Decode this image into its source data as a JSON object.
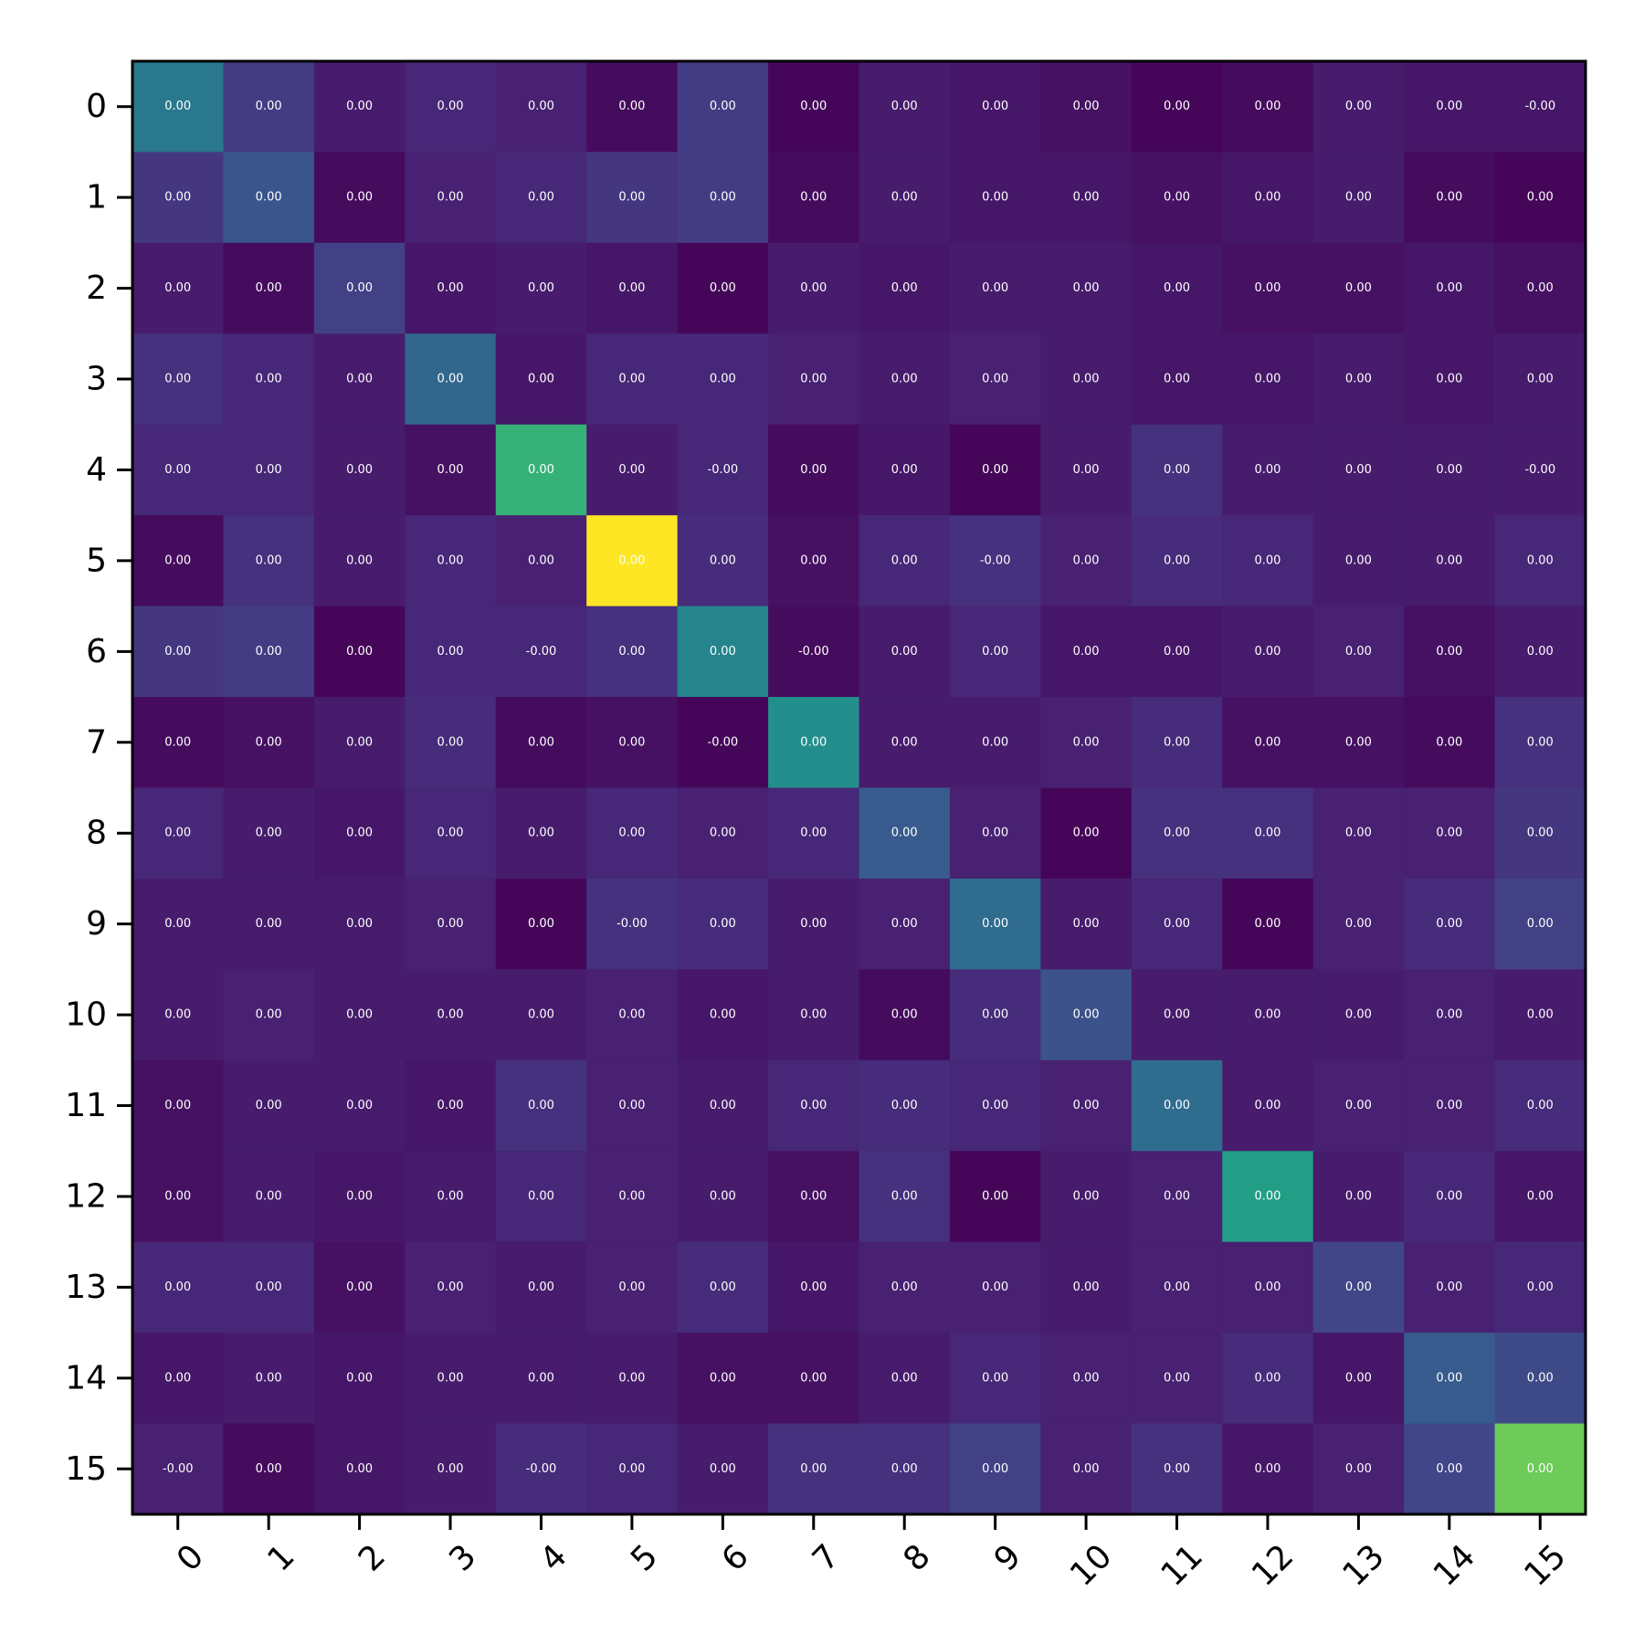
{
  "chart_data": {
    "type": "heatmap",
    "title": "",
    "xlabel": "",
    "ylabel": "",
    "x_categories": [
      "0",
      "1",
      "2",
      "3",
      "4",
      "5",
      "6",
      "7",
      "8",
      "9",
      "10",
      "11",
      "12",
      "13",
      "14",
      "15"
    ],
    "y_categories": [
      "0",
      "1",
      "2",
      "3",
      "4",
      "5",
      "6",
      "7",
      "8",
      "9",
      "10",
      "11",
      "12",
      "13",
      "14",
      "15"
    ],
    "colormap": "viridis",
    "value_range": [
      0,
      1
    ],
    "intensity": [
      [
        0.5,
        0.22,
        0.1,
        0.14,
        0.12,
        0.04,
        0.22,
        0.02,
        0.1,
        0.08,
        0.06,
        0.02,
        0.04,
        0.1,
        0.08,
        0.08
      ],
      [
        0.2,
        0.33,
        0.04,
        0.12,
        0.14,
        0.2,
        0.22,
        0.04,
        0.1,
        0.08,
        0.08,
        0.06,
        0.08,
        0.1,
        0.04,
        0.02
      ],
      [
        0.1,
        0.04,
        0.24,
        0.08,
        0.1,
        0.08,
        0.02,
        0.1,
        0.08,
        0.1,
        0.1,
        0.08,
        0.06,
        0.06,
        0.08,
        0.06
      ],
      [
        0.18,
        0.14,
        0.1,
        0.42,
        0.08,
        0.14,
        0.14,
        0.12,
        0.1,
        0.12,
        0.1,
        0.08,
        0.08,
        0.1,
        0.08,
        0.1
      ],
      [
        0.14,
        0.14,
        0.1,
        0.06,
        0.78,
        0.1,
        0.14,
        0.04,
        0.08,
        0.02,
        0.1,
        0.18,
        0.1,
        0.1,
        0.1,
        0.1
      ],
      [
        0.04,
        0.18,
        0.1,
        0.14,
        0.12,
        1.0,
        0.16,
        0.06,
        0.14,
        0.18,
        0.12,
        0.16,
        0.14,
        0.1,
        0.1,
        0.14
      ],
      [
        0.2,
        0.22,
        0.02,
        0.14,
        0.14,
        0.18,
        0.56,
        0.04,
        0.1,
        0.14,
        0.08,
        0.08,
        0.1,
        0.12,
        0.06,
        0.1
      ],
      [
        0.04,
        0.06,
        0.1,
        0.16,
        0.04,
        0.06,
        0.02,
        0.62,
        0.1,
        0.1,
        0.12,
        0.16,
        0.06,
        0.06,
        0.04,
        0.18
      ],
      [
        0.14,
        0.1,
        0.08,
        0.14,
        0.1,
        0.14,
        0.12,
        0.14,
        0.36,
        0.12,
        0.02,
        0.18,
        0.18,
        0.12,
        0.12,
        0.2
      ],
      [
        0.1,
        0.1,
        0.1,
        0.12,
        0.02,
        0.18,
        0.16,
        0.1,
        0.12,
        0.44,
        0.1,
        0.14,
        0.02,
        0.12,
        0.16,
        0.24
      ],
      [
        0.1,
        0.12,
        0.1,
        0.1,
        0.1,
        0.12,
        0.08,
        0.1,
        0.04,
        0.16,
        0.32,
        0.1,
        0.1,
        0.1,
        0.12,
        0.1
      ],
      [
        0.06,
        0.1,
        0.1,
        0.08,
        0.18,
        0.12,
        0.1,
        0.14,
        0.16,
        0.14,
        0.12,
        0.44,
        0.1,
        0.12,
        0.12,
        0.16
      ],
      [
        0.06,
        0.1,
        0.08,
        0.1,
        0.14,
        0.12,
        0.1,
        0.06,
        0.18,
        0.02,
        0.1,
        0.12,
        0.7,
        0.1,
        0.14,
        0.08
      ],
      [
        0.14,
        0.14,
        0.06,
        0.12,
        0.1,
        0.12,
        0.16,
        0.08,
        0.12,
        0.12,
        0.1,
        0.12,
        0.12,
        0.26,
        0.12,
        0.14
      ],
      [
        0.08,
        0.1,
        0.08,
        0.1,
        0.1,
        0.1,
        0.06,
        0.06,
        0.1,
        0.14,
        0.12,
        0.12,
        0.16,
        0.08,
        0.36,
        0.28
      ],
      [
        0.12,
        0.04,
        0.08,
        0.1,
        0.16,
        0.14,
        0.1,
        0.18,
        0.18,
        0.24,
        0.12,
        0.18,
        0.08,
        0.12,
        0.26,
        0.86
      ]
    ],
    "cell_labels": [
      [
        "0.00",
        "0.00",
        "0.00",
        "0.00",
        "0.00",
        "0.00",
        "0.00",
        "0.00",
        "0.00",
        "0.00",
        "0.00",
        "0.00",
        "0.00",
        "0.00",
        "0.00",
        "-0.00"
      ],
      [
        "0.00",
        "0.00",
        "0.00",
        "0.00",
        "0.00",
        "0.00",
        "0.00",
        "0.00",
        "0.00",
        "0.00",
        "0.00",
        "0.00",
        "0.00",
        "0.00",
        "0.00",
        "0.00"
      ],
      [
        "0.00",
        "0.00",
        "0.00",
        "0.00",
        "0.00",
        "0.00",
        "0.00",
        "0.00",
        "0.00",
        "0.00",
        "0.00",
        "0.00",
        "0.00",
        "0.00",
        "0.00",
        "0.00"
      ],
      [
        "0.00",
        "0.00",
        "0.00",
        "0.00",
        "0.00",
        "0.00",
        "0.00",
        "0.00",
        "0.00",
        "0.00",
        "0.00",
        "0.00",
        "0.00",
        "0.00",
        "0.00",
        "0.00"
      ],
      [
        "0.00",
        "0.00",
        "0.00",
        "0.00",
        "0.00",
        "0.00",
        "-0.00",
        "0.00",
        "0.00",
        "0.00",
        "0.00",
        "0.00",
        "0.00",
        "0.00",
        "0.00",
        "-0.00"
      ],
      [
        "0.00",
        "0.00",
        "0.00",
        "0.00",
        "0.00",
        "0.00",
        "0.00",
        "0.00",
        "0.00",
        "-0.00",
        "0.00",
        "0.00",
        "0.00",
        "0.00",
        "0.00",
        "0.00"
      ],
      [
        "0.00",
        "0.00",
        "0.00",
        "0.00",
        "-0.00",
        "0.00",
        "0.00",
        "-0.00",
        "0.00",
        "0.00",
        "0.00",
        "0.00",
        "0.00",
        "0.00",
        "0.00",
        "0.00"
      ],
      [
        "0.00",
        "0.00",
        "0.00",
        "0.00",
        "0.00",
        "0.00",
        "-0.00",
        "0.00",
        "0.00",
        "0.00",
        "0.00",
        "0.00",
        "0.00",
        "0.00",
        "0.00",
        "0.00"
      ],
      [
        "0.00",
        "0.00",
        "0.00",
        "0.00",
        "0.00",
        "0.00",
        "0.00",
        "0.00",
        "0.00",
        "0.00",
        "0.00",
        "0.00",
        "0.00",
        "0.00",
        "0.00",
        "0.00"
      ],
      [
        "0.00",
        "0.00",
        "0.00",
        "0.00",
        "0.00",
        "-0.00",
        "0.00",
        "0.00",
        "0.00",
        "0.00",
        "0.00",
        "0.00",
        "0.00",
        "0.00",
        "0.00",
        "0.00"
      ],
      [
        "0.00",
        "0.00",
        "0.00",
        "0.00",
        "0.00",
        "0.00",
        "0.00",
        "0.00",
        "0.00",
        "0.00",
        "0.00",
        "0.00",
        "0.00",
        "0.00",
        "0.00",
        "0.00"
      ],
      [
        "0.00",
        "0.00",
        "0.00",
        "0.00",
        "0.00",
        "0.00",
        "0.00",
        "0.00",
        "0.00",
        "0.00",
        "0.00",
        "0.00",
        "0.00",
        "0.00",
        "0.00",
        "0.00"
      ],
      [
        "0.00",
        "0.00",
        "0.00",
        "0.00",
        "0.00",
        "0.00",
        "0.00",
        "0.00",
        "0.00",
        "0.00",
        "0.00",
        "0.00",
        "0.00",
        "0.00",
        "0.00",
        "0.00"
      ],
      [
        "0.00",
        "0.00",
        "0.00",
        "0.00",
        "0.00",
        "0.00",
        "0.00",
        "0.00",
        "0.00",
        "0.00",
        "0.00",
        "0.00",
        "0.00",
        "0.00",
        "0.00",
        "0.00"
      ],
      [
        "0.00",
        "0.00",
        "0.00",
        "0.00",
        "0.00",
        "0.00",
        "0.00",
        "0.00",
        "0.00",
        "0.00",
        "0.00",
        "0.00",
        "0.00",
        "0.00",
        "0.00",
        "0.00"
      ],
      [
        "-0.00",
        "0.00",
        "0.00",
        "0.00",
        "-0.00",
        "0.00",
        "0.00",
        "0.00",
        "0.00",
        "0.00",
        "0.00",
        "0.00",
        "0.00",
        "0.00",
        "0.00",
        "0.00"
      ]
    ],
    "grid": false,
    "legend": "none",
    "x_tick_rotation_deg": 45
  }
}
